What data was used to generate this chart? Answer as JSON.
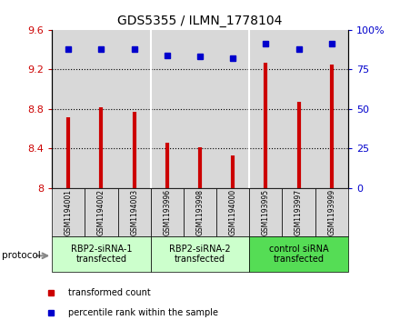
{
  "title": "GDS5355 / ILMN_1778104",
  "samples": [
    "GSM1194001",
    "GSM1194002",
    "GSM1194003",
    "GSM1193996",
    "GSM1193998",
    "GSM1194000",
    "GSM1193995",
    "GSM1193997",
    "GSM1193999"
  ],
  "transformed_counts": [
    8.72,
    8.82,
    8.77,
    8.46,
    8.41,
    8.33,
    9.27,
    8.87,
    9.25
  ],
  "percentile_ranks": [
    88,
    88,
    88,
    84,
    83,
    82,
    91,
    88,
    91
  ],
  "ylim_left": [
    8.0,
    9.6
  ],
  "ylim_right": [
    0,
    100
  ],
  "yticks_left": [
    8.0,
    8.4,
    8.8,
    9.2,
    9.6
  ],
  "ytick_labels_left": [
    "8",
    "8.4",
    "8.8",
    "9.2",
    "9.6"
  ],
  "yticks_right": [
    0,
    25,
    50,
    75,
    100
  ],
  "ytick_labels_right": [
    "0",
    "25",
    "50",
    "75",
    "100%"
  ],
  "groups": [
    {
      "label": "RBP2-siRNA-1\ntransfected",
      "indices": [
        0,
        1,
        2
      ],
      "color": "#ccffcc"
    },
    {
      "label": "RBP2-siRNA-2\ntransfected",
      "indices": [
        3,
        4,
        5
      ],
      "color": "#ccffcc"
    },
    {
      "label": "control siRNA\ntransfected",
      "indices": [
        6,
        7,
        8
      ],
      "color": "#55dd55"
    }
  ],
  "bar_color": "#cc0000",
  "dot_color": "#0000cc",
  "background_color": "#d8d8d8",
  "sample_box_color": "#d8d8d8",
  "protocol_label": "protocol",
  "legend_items": [
    {
      "label": "transformed count",
      "color": "#cc0000"
    },
    {
      "label": "percentile rank within the sample",
      "color": "#0000cc"
    }
  ],
  "grid_yticks": [
    8.4,
    8.8,
    9.2
  ]
}
